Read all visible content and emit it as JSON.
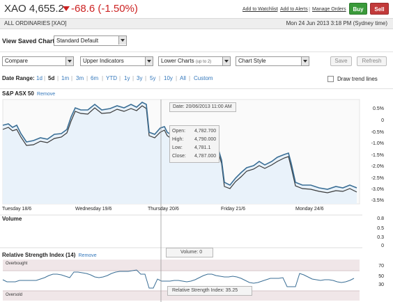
{
  "header": {
    "ticker_price": "XAO 4,655.2",
    "change": "-68.6 (-1.50%)",
    "links": [
      "Add to Watchlist",
      "Add to Alerts",
      "Manage Orders"
    ],
    "buy_label": "Buy",
    "sell_label": "Sell"
  },
  "subheader": {
    "name": "ALL ORDINARIES [XAO]",
    "datetime": "Mon 24 Jun 2013 3:18 PM (Sydney time)"
  },
  "saved_chart": {
    "label": "View Saved Chart:",
    "selected": "Standard Default"
  },
  "toolbar": {
    "compare": "Compare",
    "upper_indicators": "Upper Indicators",
    "lower_charts": "Lower Charts",
    "lower_charts_hint": "(up to 2)",
    "chart_style": "Chart Style",
    "save": "Save",
    "refresh": "Refresh"
  },
  "date_range": {
    "label": "Date Range:",
    "options": [
      "1d",
      "5d",
      "1m",
      "3m",
      "6m",
      "YTD",
      "1y",
      "3y",
      "5y",
      "10y",
      "All",
      "Custom"
    ],
    "selected": "5d",
    "trend_label": "Draw trend lines"
  },
  "main_chart": {
    "title": "S&P ASX 50",
    "remove": "Remove",
    "y_ticks": [
      "0.5%",
      "0",
      "-0.5%",
      "-1.0%",
      "-1.5%",
      "-2.0%",
      "-2.5%",
      "-3.0%",
      "-3.5%"
    ],
    "x_ticks": [
      "Tuesday 18/6",
      "Wednesday 19/6",
      "Thursday 20/6",
      "Friday 21/6",
      "Monday 24/6"
    ],
    "tooltip_date": "Date: 20/06/2013 11:00 AM",
    "ohlc": [
      {
        "label": "Open:",
        "value": "4,782.700"
      },
      {
        "label": "High:",
        "value": "4,790.000"
      },
      {
        "label": "Low:",
        "value": "4,781.1"
      },
      {
        "label": "Close:",
        "value": "4,787.000"
      }
    ]
  },
  "volume": {
    "title": "Volume",
    "y_ticks": [
      "0.8",
      "0.5",
      "0.3",
      "0"
    ],
    "tooltip": "Volume: 0"
  },
  "rsi": {
    "title": "Relative Strength Index (14)",
    "remove": "Remove",
    "overbought": "Overbought",
    "oversold": "Oversold",
    "y_ticks": [
      "70",
      "50",
      "30"
    ],
    "tooltip": "Relative Strength Index: 35.25"
  },
  "colors": {
    "down": "#cc2222",
    "link": "#3377bb",
    "line_primary": "#3a6e95",
    "line_secondary": "#3a3a3a",
    "fill": "#e9f2fa",
    "buy": "#3a9a3a",
    "sell": "#c23a3a"
  }
}
